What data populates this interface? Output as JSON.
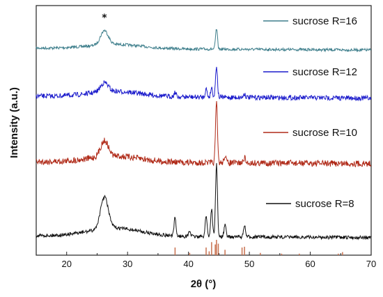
{
  "chart_data": {
    "type": "line",
    "xlabel": "2θ (°)",
    "ylabel": "Intensity (a.u.)",
    "xlim": [
      15,
      70
    ],
    "xticks": [
      20,
      30,
      40,
      50,
      60,
      70
    ],
    "y_ticks_shown": false,
    "legend_placement": "inline right of each curve",
    "annotation": {
      "text": "*",
      "x": 26.2
    },
    "series": [
      {
        "name": "sucrose R=16",
        "color": "#3f7f8c",
        "peaks_2theta": [
          26.2,
          44.6
        ]
      },
      {
        "name": "sucrose R=12",
        "color": "#1c1ccc",
        "peaks_2theta": [
          26.2,
          37.8,
          42.9,
          43.8,
          44.6,
          49.2
        ]
      },
      {
        "name": "sucrose R=10",
        "color": "#b02a18",
        "peaks_2theta": [
          26.2,
          44.6,
          46.0,
          49.2
        ]
      },
      {
        "name": "sucrose R=8",
        "color": "#111111",
        "peaks_2theta": [
          26.2,
          37.8,
          40.2,
          42.9,
          43.8,
          44.6,
          46.0,
          49.2
        ]
      }
    ],
    "reference_lines": {
      "color": "#c8714f",
      "positions_2theta": [
        37.8,
        40.2,
        42.9,
        43.4,
        43.8,
        44.4,
        44.6,
        44.9,
        46.0,
        48.8,
        49.2,
        51.8,
        55.3,
        58.2,
        64.6,
        65.3
      ],
      "relative_heights": [
        0.5,
        0.15,
        0.5,
        0.25,
        0.85,
        0.7,
        1.0,
        0.75,
        0.35,
        0.5,
        0.55,
        0.15,
        0.1,
        0.1,
        0.1,
        0.2
      ]
    }
  }
}
